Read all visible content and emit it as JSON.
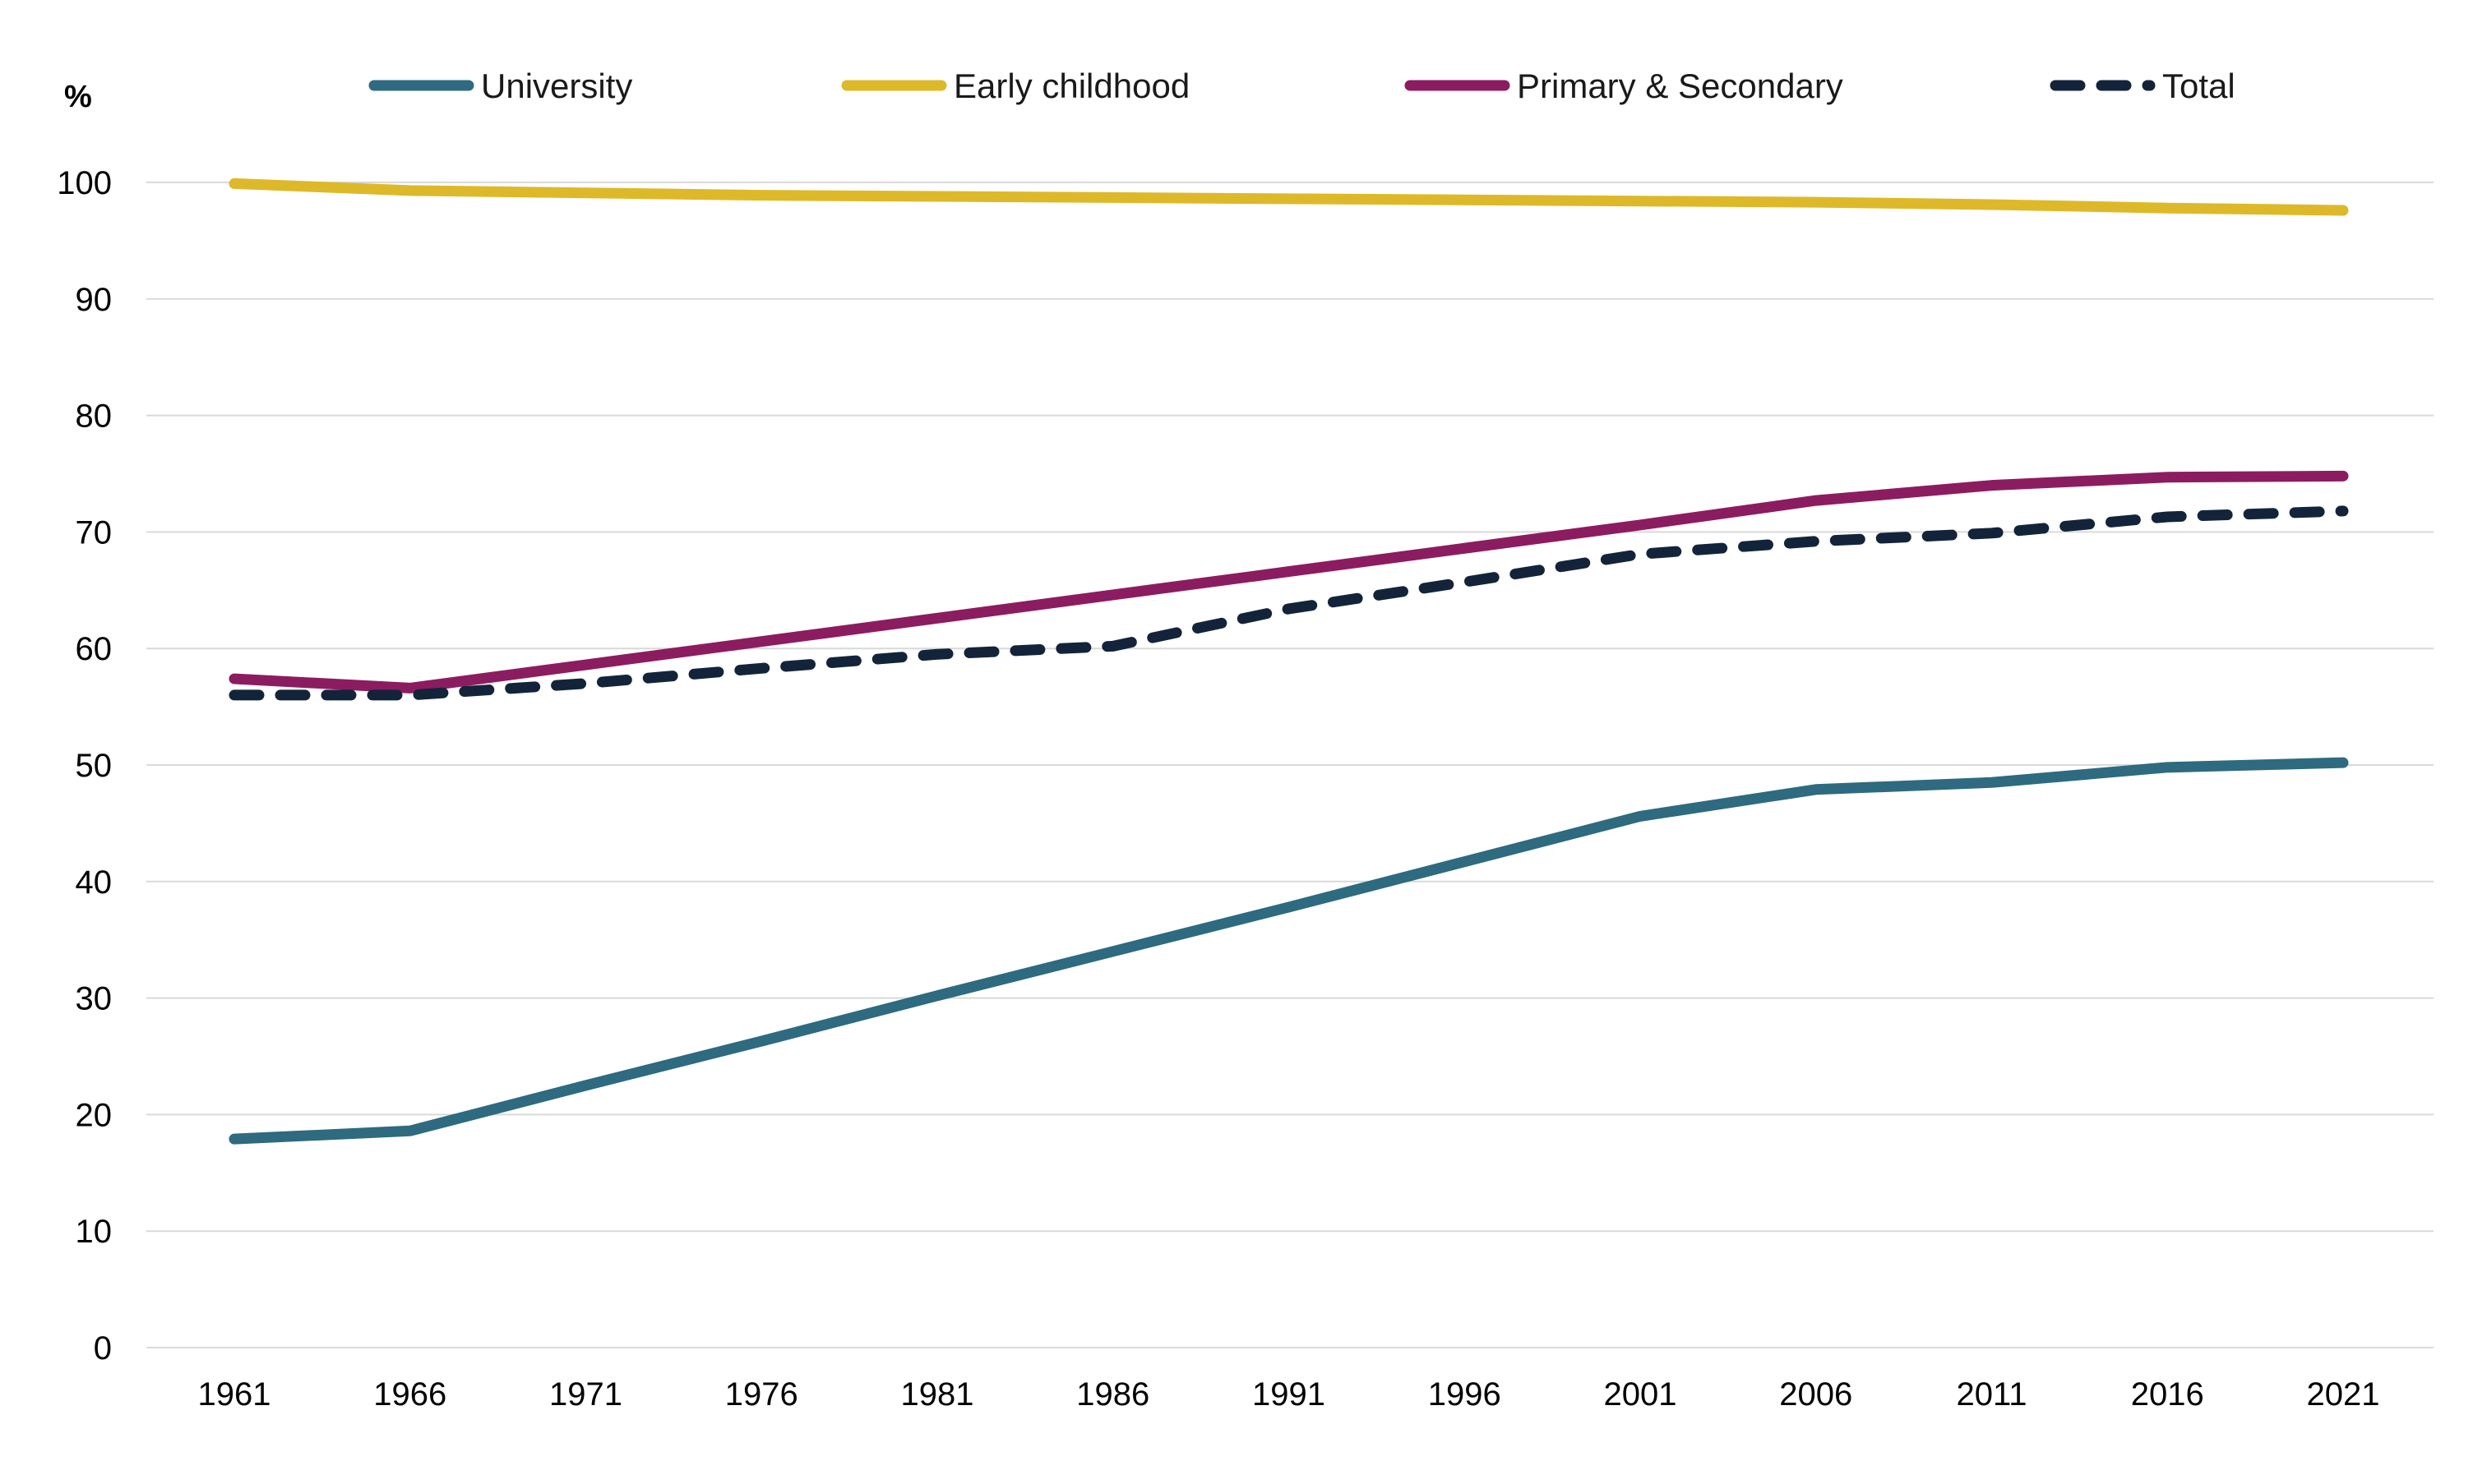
{
  "chart_data": {
    "type": "line",
    "title": "",
    "xlabel": "",
    "ylabel": "%",
    "ylim": [
      0,
      100
    ],
    "yticks": [
      0,
      10,
      20,
      30,
      40,
      50,
      60,
      70,
      80,
      90,
      100
    ],
    "ytick_labels": [
      "0",
      "10",
      "20",
      "30",
      "40",
      "50",
      "60",
      "70",
      "80",
      "90",
      "100"
    ],
    "categories": [
      "1961",
      "1966",
      "1971",
      "1976",
      "1981",
      "1986",
      "1991",
      "1996",
      "2001",
      "2006",
      "2011",
      "2016",
      "2021"
    ],
    "grid": true,
    "legend_position": "top",
    "series": [
      {
        "name": "University",
        "color": "#2e6a80",
        "style": "solid",
        "values": [
          17.9,
          18.6,
          22.5,
          26.3,
          30.2,
          34.0,
          37.8,
          41.7,
          45.6,
          47.9,
          48.5,
          49.8,
          50.2
        ]
      },
      {
        "name": "Early childhood",
        "color": "#ddb92a",
        "style": "solid",
        "values": [
          99.9,
          99.3,
          99.1,
          98.9,
          98.8,
          98.7,
          98.6,
          98.5,
          98.4,
          98.3,
          98.1,
          97.8,
          97.6
        ]
      },
      {
        "name": "Primary & Secondary",
        "color": "#8c1c60",
        "style": "solid",
        "values": [
          57.4,
          56.6,
          58.6,
          60.6,
          62.6,
          64.6,
          66.6,
          68.6,
          70.6,
          72.7,
          74.0,
          74.7,
          74.8
        ]
      },
      {
        "name": "Total",
        "color": "#13243a",
        "style": "dashed",
        "values": [
          56.0,
          56.0,
          57.0,
          58.3,
          59.5,
          60.2,
          63.4,
          65.7,
          68.1,
          69.2,
          69.9,
          71.3,
          71.8
        ]
      }
    ]
  }
}
